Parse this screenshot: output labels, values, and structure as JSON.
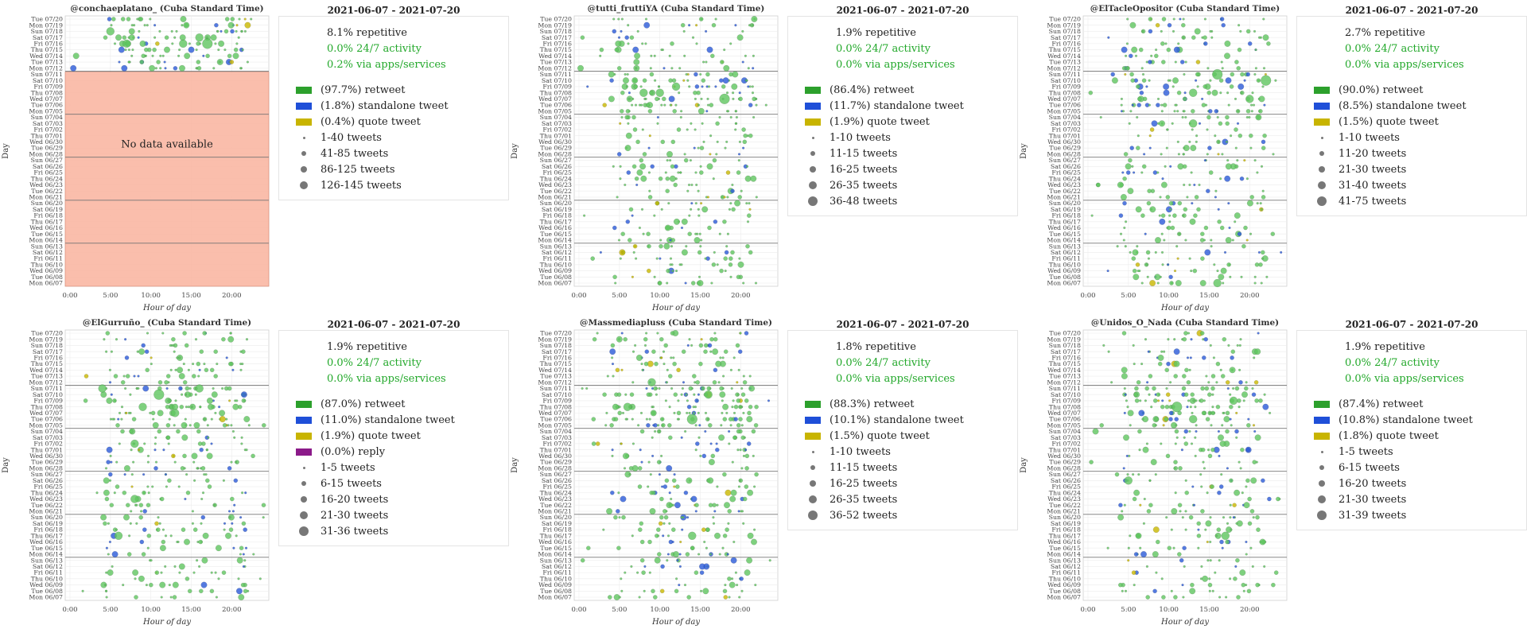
{
  "common": {
    "date_range": "2021-06-07 - 2021-07-20",
    "xlabel": "Hour of day",
    "ylabel": "Day",
    "xticks": [
      "0:00",
      "5:00",
      "10:00",
      "15:00",
      "20:00"
    ],
    "days": [
      "Tue 07/20",
      "Mon 07/19",
      "Sun 07/18",
      "Sat 07/17",
      "Fri 07/16",
      "Thu 07/15",
      "Wed 07/14",
      "Tue 07/13",
      "Mon 07/12",
      "Sun 07/11",
      "Sat 07/10",
      "Fri 07/09",
      "Thu 07/08",
      "Wed 07/07",
      "Tue 07/06",
      "Mon 07/05",
      "Sun 07/04",
      "Sat 07/03",
      "Fri 07/02",
      "Thu 07/01",
      "Wed 06/30",
      "Tue 06/29",
      "Mon 06/28",
      "Sun 06/27",
      "Sat 06/26",
      "Fri 06/25",
      "Thu 06/24",
      "Wed 06/23",
      "Tue 06/22",
      "Mon 06/21",
      "Sun 06/20",
      "Sat 06/19",
      "Fri 06/18",
      "Thu 06/17",
      "Wed 06/16",
      "Tue 06/15",
      "Mon 06/14",
      "Sun 06/13",
      "Sat 06/12",
      "Fri 06/11",
      "Thu 06/10",
      "Wed 06/09",
      "Tue 06/08",
      "Mon 06/07"
    ],
    "colors": {
      "retweet": "#2ca02c",
      "standalone": "#1f4fd8",
      "quote": "#c8b400",
      "reply": "#8b1a89",
      "nodata": "#f9b7a3",
      "dot_green": "#5fc65f",
      "dot_blue": "#2a5ad8",
      "dot_yellow": "#c9b800"
    }
  },
  "panels": [
    {
      "title": "@conchaeplatano_ (Cuba Standard Time)",
      "stats": [
        "8.1% repetitive",
        "0.0% 24/7 activity",
        "0.2% via apps/services"
      ],
      "types": [
        {
          "label": "(97.7%) retweet",
          "color": "retweet"
        },
        {
          "label": "(1.8%) standalone tweet",
          "color": "standalone"
        },
        {
          "label": "(0.4%) quote tweet",
          "color": "quote"
        }
      ],
      "sizes": [
        "1-40 tweets",
        "41-85 tweets",
        "86-125 tweets",
        "126-145 tweets"
      ],
      "no_data_text": "No data available"
    },
    {
      "title": "@tutti_fruttiYA (Cuba Standard Time)",
      "stats": [
        "1.9% repetitive",
        "0.0% 24/7 activity",
        "0.0% via apps/services"
      ],
      "types": [
        {
          "label": "(86.4%) retweet",
          "color": "retweet"
        },
        {
          "label": "(11.7%) standalone tweet",
          "color": "standalone"
        },
        {
          "label": "(1.9%) quote tweet",
          "color": "quote"
        }
      ],
      "sizes": [
        "1-10 tweets",
        "11-15 tweets",
        "16-25 tweets",
        "26-35 tweets",
        "36-48 tweets"
      ]
    },
    {
      "title": "@ElTacleOpositor (Cuba Standard Time)",
      "stats": [
        "2.7% repetitive",
        "0.0% 24/7 activity",
        "0.0% via apps/services"
      ],
      "types": [
        {
          "label": "(90.0%) retweet",
          "color": "retweet"
        },
        {
          "label": "(8.5%) standalone tweet",
          "color": "standalone"
        },
        {
          "label": "(1.5%) quote tweet",
          "color": "quote"
        }
      ],
      "sizes": [
        "1-10 tweets",
        "11-20 tweets",
        "21-30 tweets",
        "31-40 tweets",
        "41-75 tweets"
      ]
    },
    {
      "title": "@ElGurruño_ (Cuba Standard Time)",
      "stats": [
        "1.9% repetitive",
        "0.0% 24/7 activity",
        "0.0% via apps/services"
      ],
      "types": [
        {
          "label": "(87.0%) retweet",
          "color": "retweet"
        },
        {
          "label": "(11.0%) standalone tweet",
          "color": "standalone"
        },
        {
          "label": "(1.9%) quote tweet",
          "color": "quote"
        },
        {
          "label": "(0.0%) reply",
          "color": "reply"
        }
      ],
      "sizes": [
        "1-5 tweets",
        "6-15 tweets",
        "16-20 tweets",
        "21-30 tweets",
        "31-36 tweets"
      ]
    },
    {
      "title": "@Massmediapluss (Cuba Standard Time)",
      "stats": [
        "1.8% repetitive",
        "0.0% 24/7 activity",
        "0.0% via apps/services"
      ],
      "types": [
        {
          "label": "(88.3%) retweet",
          "color": "retweet"
        },
        {
          "label": "(10.1%) standalone tweet",
          "color": "standalone"
        },
        {
          "label": "(1.5%) quote tweet",
          "color": "quote"
        }
      ],
      "sizes": [
        "1-10 tweets",
        "11-15 tweets",
        "16-25 tweets",
        "26-35 tweets",
        "36-52 tweets"
      ]
    },
    {
      "title": "@Unidos_O_Nada (Cuba Standard Time)",
      "stats": [
        "1.9% repetitive",
        "0.0% 24/7 activity",
        "0.0% via apps/services"
      ],
      "types": [
        {
          "label": "(87.4%) retweet",
          "color": "retweet"
        },
        {
          "label": "(10.8%) standalone tweet",
          "color": "standalone"
        },
        {
          "label": "(1.8%) quote tweet",
          "color": "quote"
        }
      ],
      "sizes": [
        "1-5 tweets",
        "6-15 tweets",
        "16-20 tweets",
        "21-30 tweets",
        "31-39 tweets"
      ]
    }
  ],
  "chart_data": [
    {
      "type": "scatter",
      "title": "@conchaeplatano_ (Cuba Standard Time)",
      "xlabel": "Hour of day",
      "ylabel": "Day",
      "xlim": [
        0,
        24
      ],
      "points": [
        {
          "day": "Sun 07/18",
          "hour": 5,
          "size": 3,
          "type": "retweet"
        },
        {
          "day": "Sat 07/17",
          "hour": 6,
          "size": 2,
          "type": "retweet"
        },
        {
          "day": "Fri 07/16",
          "hour": 7,
          "size": 3,
          "type": "retweet"
        },
        {
          "day": "Fri 07/16",
          "hour": 9,
          "size": 2,
          "type": "retweet"
        },
        {
          "day": "Thu 07/15",
          "hour": 12,
          "size": 2,
          "type": "retweet"
        },
        {
          "day": "Fri 07/16",
          "hour": 14,
          "size": 3,
          "type": "retweet"
        },
        {
          "day": "Thu 07/15",
          "hour": 15,
          "size": 2,
          "type": "standalone"
        },
        {
          "day": "Fri 07/16",
          "hour": 17,
          "size": 4,
          "type": "retweet"
        },
        {
          "day": "Sat 07/17",
          "hour": 16,
          "size": 3,
          "type": "retweet"
        },
        {
          "day": "Tue 07/13",
          "hour": 20,
          "size": 1,
          "type": "quote"
        }
      ]
    },
    {
      "type": "scatter",
      "title": "@tutti_fruttiYA (Cuba Standard Time)",
      "xlabel": "Hour of day",
      "ylabel": "Day",
      "xlim": [
        0,
        24
      ],
      "points": [
        {
          "day": "Thu 07/08",
          "hour": 8,
          "size": 3,
          "type": "retweet"
        },
        {
          "day": "Wed 07/07",
          "hour": 18,
          "size": 4,
          "type": "retweet"
        },
        {
          "day": "Thu 07/08",
          "hour": 10,
          "size": 3,
          "type": "retweet"
        },
        {
          "day": "Fri 07/09",
          "hour": 12,
          "size": 3,
          "type": "retweet"
        },
        {
          "day": "Thu 07/15",
          "hour": 7,
          "size": 2,
          "type": "standalone"
        },
        {
          "day": "Sun 07/11",
          "hour": 4,
          "size": 2,
          "type": "retweet"
        },
        {
          "day": "Thu 06/24",
          "hour": 8,
          "size": 2,
          "type": "retweet"
        },
        {
          "day": "Wed 06/16",
          "hour": 11,
          "size": 2,
          "type": "retweet"
        },
        {
          "day": "Mon 06/07",
          "hour": 15,
          "size": 2,
          "type": "retweet"
        }
      ]
    },
    {
      "type": "scatter",
      "title": "@ElTacleOpositor (Cuba Standard Time)",
      "xlabel": "Hour of day",
      "ylabel": "Day",
      "xlim": [
        0,
        24
      ],
      "points": [
        {
          "day": "Sun 07/11",
          "hour": 16,
          "size": 4,
          "type": "retweet"
        },
        {
          "day": "Sat 07/10",
          "hour": 22,
          "size": 4,
          "type": "retweet"
        },
        {
          "day": "Thu 07/08",
          "hour": 13,
          "size": 3,
          "type": "retweet"
        },
        {
          "day": "Wed 07/07",
          "hour": 20,
          "size": 3,
          "type": "retweet"
        },
        {
          "day": "Sat 07/03",
          "hour": 13,
          "size": 3,
          "type": "retweet"
        },
        {
          "day": "Mon 06/07",
          "hour": 16,
          "size": 3,
          "type": "retweet"
        },
        {
          "day": "Sat 06/19",
          "hour": 8,
          "size": 2,
          "type": "retweet"
        },
        {
          "day": "Thu 07/15",
          "hour": 11,
          "size": 2,
          "type": "standalone"
        }
      ]
    },
    {
      "type": "scatter",
      "title": "@ElGurruño_ (Cuba Standard Time)",
      "xlabel": "Hour of day",
      "ylabel": "Day",
      "xlim": [
        0,
        24
      ],
      "points": [
        {
          "day": "Sat 07/10",
          "hour": 11,
          "size": 5,
          "type": "retweet"
        },
        {
          "day": "Sun 07/11",
          "hour": 4,
          "size": 3,
          "type": "retweet"
        },
        {
          "day": "Wed 07/07",
          "hour": 13,
          "size": 3,
          "type": "retweet"
        },
        {
          "day": "Thu 07/08",
          "hour": 9,
          "size": 3,
          "type": "retweet"
        },
        {
          "day": "Fri 07/02",
          "hour": 8,
          "size": 3,
          "type": "retweet"
        },
        {
          "day": "Wed 06/23",
          "hour": 8,
          "size": 3,
          "type": "retweet"
        },
        {
          "day": "Thu 06/17",
          "hour": 6,
          "size": 3,
          "type": "retweet"
        },
        {
          "day": "Sun 07/11",
          "hour": 16,
          "size": 3,
          "type": "retweet"
        }
      ]
    },
    {
      "type": "scatter",
      "title": "@Massmediapluss (Cuba Standard Time)",
      "xlabel": "Hour of day",
      "ylabel": "Day",
      "xlim": [
        0,
        24
      ],
      "points": [
        {
          "day": "Tue 07/06",
          "hour": 14,
          "size": 4,
          "type": "retweet"
        },
        {
          "day": "Thu 07/08",
          "hour": 6,
          "size": 3,
          "type": "retweet"
        },
        {
          "day": "Sat 07/10",
          "hour": 16,
          "size": 3,
          "type": "retweet"
        },
        {
          "day": "Thu 06/17",
          "hour": 14,
          "size": 3,
          "type": "retweet"
        },
        {
          "day": "Mon 07/12",
          "hour": 9,
          "size": 3,
          "type": "retweet"
        },
        {
          "day": "Wed 06/23",
          "hour": 19,
          "size": 2,
          "type": "retweet"
        },
        {
          "day": "Mon 06/14",
          "hour": 12,
          "size": 2,
          "type": "retweet"
        }
      ]
    },
    {
      "type": "scatter",
      "title": "@Unidos_O_Nada (Cuba Standard Time)",
      "xlabel": "Hour of day",
      "ylabel": "Day",
      "xlim": [
        0,
        24
      ],
      "points": [
        {
          "day": "Thu 07/08",
          "hour": 11,
          "size": 4,
          "type": "retweet"
        },
        {
          "day": "Fri 07/09",
          "hour": 18,
          "size": 3,
          "type": "retweet"
        },
        {
          "day": "Tue 07/06",
          "hour": 13,
          "size": 3,
          "type": "retweet"
        },
        {
          "day": "Thu 06/17",
          "hour": 17,
          "size": 3,
          "type": "retweet"
        },
        {
          "day": "Sat 06/26",
          "hour": 5,
          "size": 3,
          "type": "retweet"
        },
        {
          "day": "Fri 07/16",
          "hour": 9,
          "size": 2,
          "type": "retweet"
        }
      ]
    }
  ]
}
